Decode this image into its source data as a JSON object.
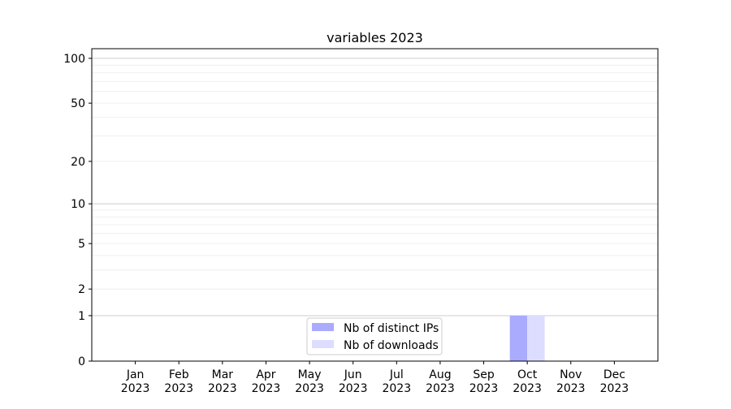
{
  "chart_data": {
    "type": "bar",
    "title": "variables 2023",
    "xlabel": "",
    "ylabel": "",
    "yscale": "log(1+y)",
    "categories": [
      "Jan\n2023",
      "Feb\n2023",
      "Mar\n2023",
      "Apr\n2023",
      "May\n2023",
      "Jun\n2023",
      "Jul\n2023",
      "Aug\n2023",
      "Sep\n2023",
      "Oct\n2023",
      "Nov\n2023",
      "Dec\n2023"
    ],
    "yticks": [
      0,
      1,
      2,
      5,
      10,
      20,
      50,
      100
    ],
    "ylim": [
      0,
      116
    ],
    "grid": true,
    "legend_position": "lower-center",
    "series": [
      {
        "name": "Nb of distinct IPs",
        "color": "#aaaaff",
        "values": [
          0,
          0,
          0,
          0,
          0,
          0,
          0,
          0,
          0,
          1,
          0,
          0
        ]
      },
      {
        "name": "Nb of downloads",
        "color": "#ddddff",
        "values": [
          0,
          0,
          0,
          0,
          0,
          0,
          0,
          0,
          0,
          1,
          0,
          0
        ]
      }
    ]
  }
}
